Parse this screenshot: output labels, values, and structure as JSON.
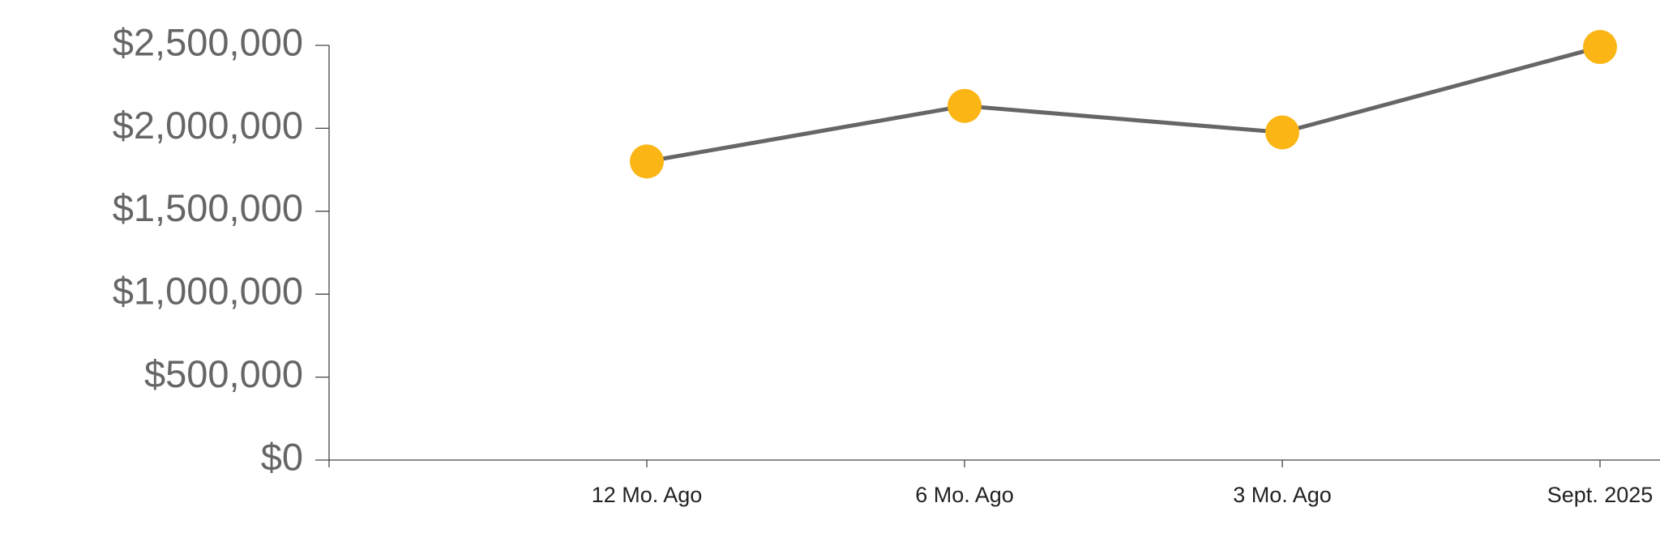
{
  "chart_data": {
    "type": "line",
    "categories": [
      null,
      "12 Mo. Ago",
      "6 Mo. Ago",
      "3 Mo. Ago",
      "Sept. 2025"
    ],
    "values": [
      null,
      1800000,
      2135000,
      1975000,
      2490000
    ],
    "color": "#fbb615",
    "line_color": "#666666",
    "ylim": [
      0,
      2500000
    ],
    "yticks": [
      {
        "value": 0,
        "label": "$0"
      },
      {
        "value": 500000,
        "label": "$500,000"
      },
      {
        "value": 1000000,
        "label": "$1,000,000"
      },
      {
        "value": 1500000,
        "label": "$1,500,000"
      },
      {
        "value": 2000000,
        "label": "$2,000,000"
      },
      {
        "value": 2500000,
        "label": "$2,500,000"
      }
    ]
  }
}
